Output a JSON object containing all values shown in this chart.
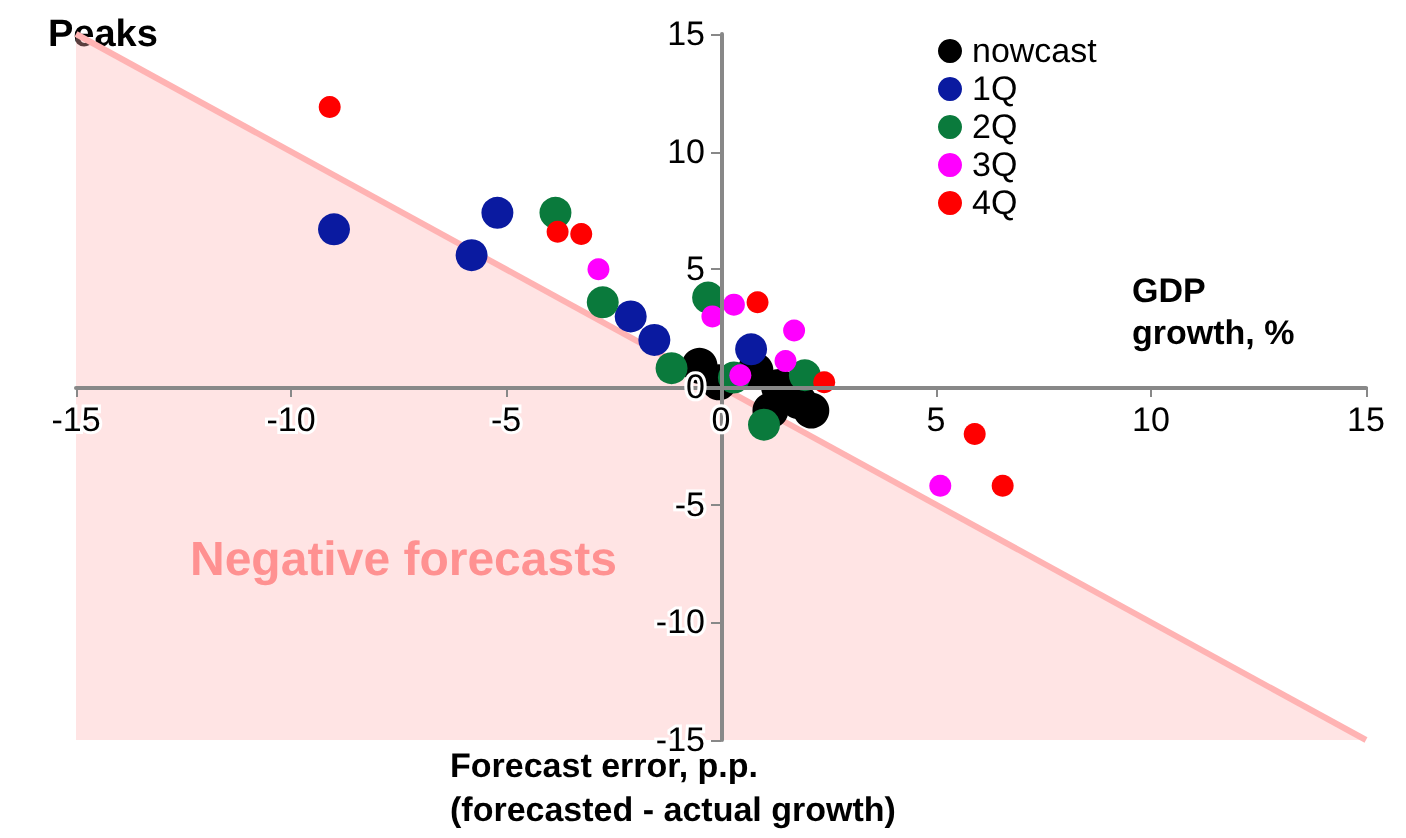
{
  "chart_data": {
    "type": "scatter",
    "title": "Peaks",
    "xlabel": "Forecast error, p.p.\n(forecasted - actual growth)",
    "ylabel": "GDP\ngrowth, %",
    "annotations": [
      "Negative forecasts"
    ],
    "xlim": [
      -15,
      15
    ],
    "ylim": [
      -15,
      15
    ],
    "xticks": [
      -15,
      -10,
      -5,
      0,
      5,
      10,
      15
    ],
    "yticks": [
      -15,
      -10,
      -5,
      0,
      5,
      10,
      15
    ],
    "grid": false,
    "legend": "top right",
    "marker": "circle",
    "series": [
      {
        "type": "area",
        "color": "#ffb3b3",
        "marker": "none",
        "x": [
          -15,
          15
        ],
        "values": [
          15,
          -15
        ]
      },
      {
        "name": "nowcast",
        "color": "#000000",
        "x": [
          -0.5,
          -0.05,
          0.8,
          1.35,
          1.15,
          2.1,
          1.8
        ],
        "values": [
          0.9,
          0.2,
          0.7,
          0,
          -1.0,
          -1.0,
          -0.6
        ]
      },
      {
        "name": "1Q",
        "color": "#0a1aa0",
        "x": [
          -9.0,
          -5.2,
          -5.8,
          -2.1,
          -1.55,
          0.7
        ],
        "values": [
          6.7,
          7.4,
          5.6,
          3.0,
          2.0,
          1.6
        ]
      },
      {
        "name": "2Q",
        "color": "#0a7a3c",
        "x": [
          -3.85,
          -2.75,
          -0.3,
          -1.15,
          0.3,
          1.95,
          1.0
        ],
        "values": [
          7.4,
          3.6,
          3.8,
          0.8,
          0.4,
          0.5,
          -1.6
        ]
      },
      {
        "name": "3Q",
        "color": "#ff00ff",
        "x": [
          -2.85,
          -0.2,
          0.3,
          1.7,
          1.5,
          0.45,
          5.1
        ],
        "values": [
          5.0,
          3.0,
          3.5,
          2.4,
          1.1,
          0.5,
          -4.2
        ]
      },
      {
        "name": "4Q",
        "color": "#ff0000",
        "x": [
          -9.1,
          -3.8,
          -3.25,
          0.85,
          2.4,
          5.9,
          6.55
        ],
        "values": [
          11.9,
          6.6,
          6.5,
          3.6,
          0.2,
          -2.0,
          -4.2
        ]
      }
    ]
  }
}
